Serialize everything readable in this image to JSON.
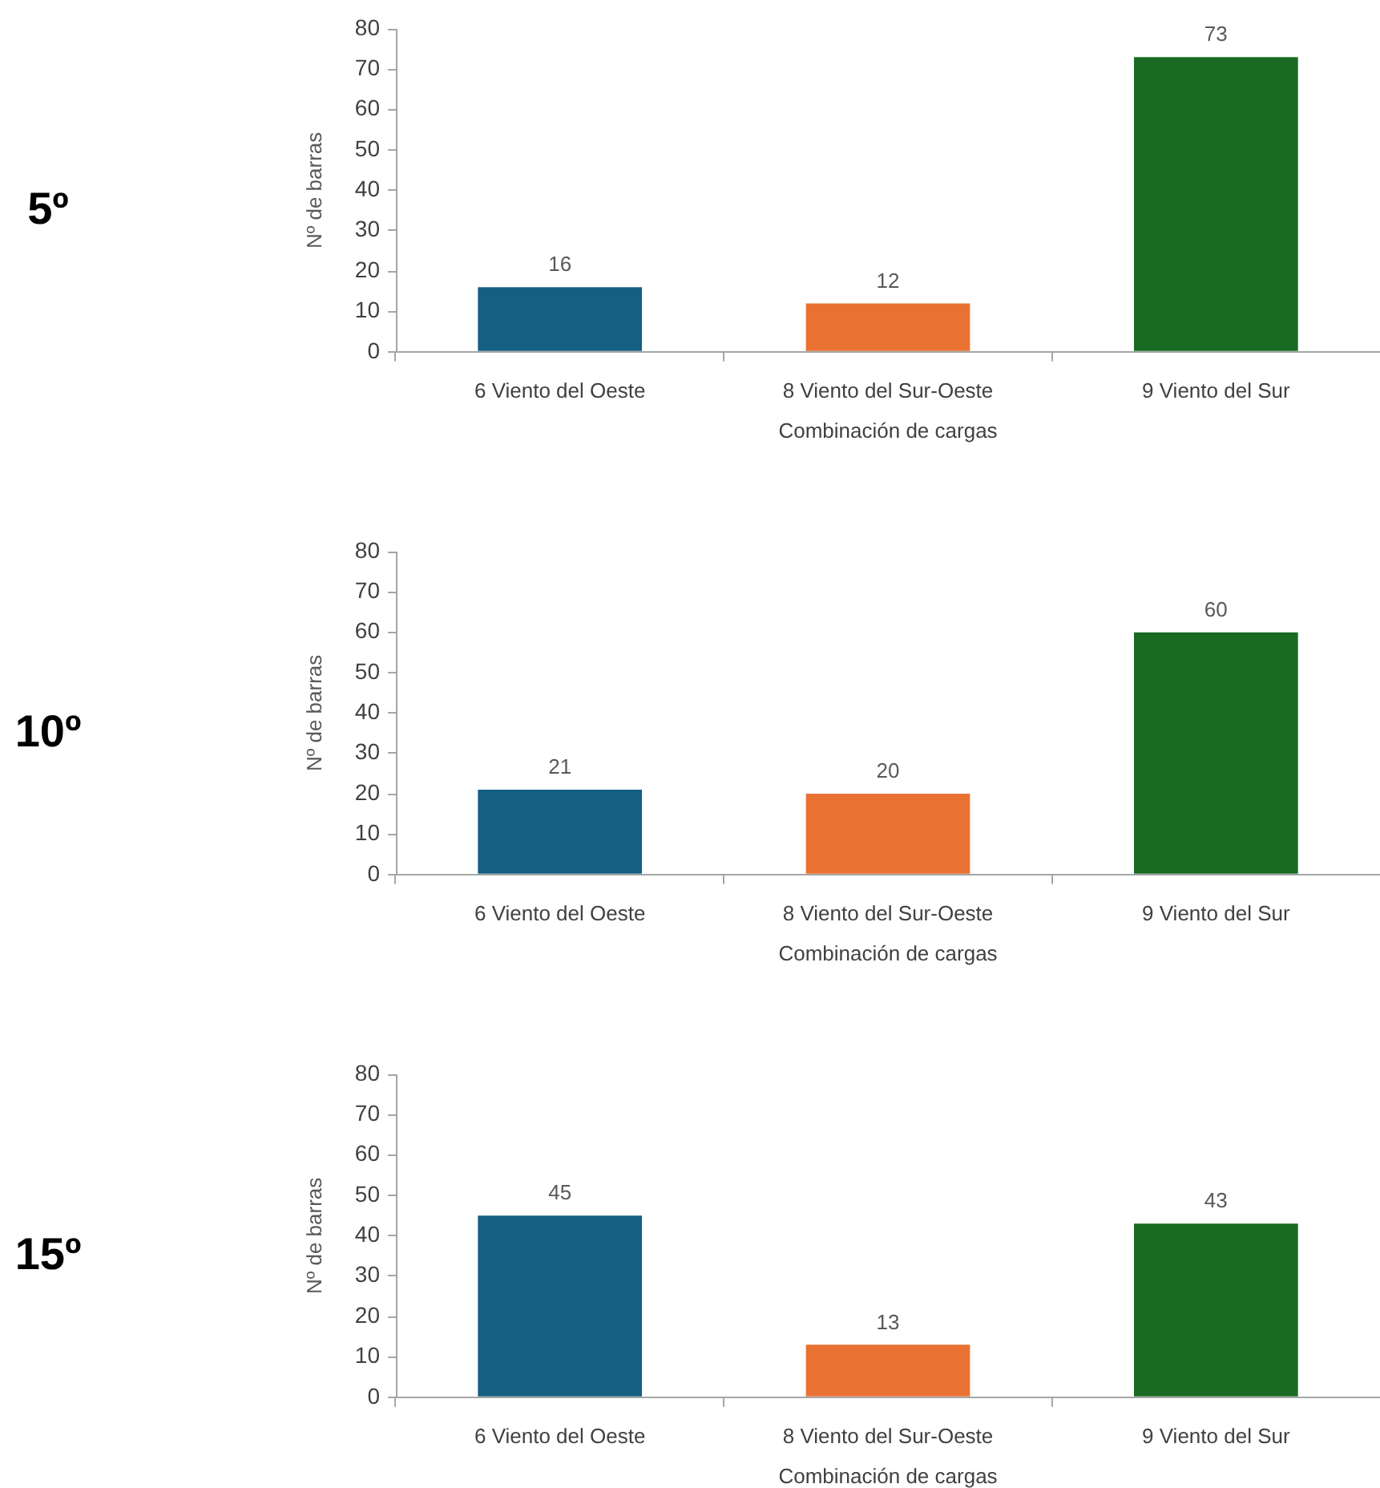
{
  "chart_data": [
    {
      "type": "bar",
      "annotations": [
        "5º"
      ],
      "categories": [
        "6 Viento del Oeste",
        "8 Viento del Sur-Oeste",
        "9 Viento del Sur"
      ],
      "values": [
        16,
        12,
        73
      ],
      "colors": [
        "#156082",
        "#e97132",
        "#196b24"
      ],
      "ylim": [
        0,
        80
      ],
      "yticks": [
        0,
        10,
        20,
        30,
        40,
        50,
        60,
        70,
        80
      ],
      "xlabel": "Combinación de cargas",
      "ylabel": "Nº de barras",
      "data_labels": true
    },
    {
      "type": "bar",
      "annotations": [
        "10º"
      ],
      "categories": [
        "6 Viento del Oeste",
        "8 Viento del Sur-Oeste",
        "9 Viento del Sur"
      ],
      "values": [
        21,
        20,
        60
      ],
      "colors": [
        "#156082",
        "#e97132",
        "#196b24"
      ],
      "ylim": [
        0,
        80
      ],
      "yticks": [
        0,
        10,
        20,
        30,
        40,
        50,
        60,
        70,
        80
      ],
      "xlabel": "Combinación de cargas",
      "ylabel": "Nº de barras",
      "data_labels": true
    },
    {
      "type": "bar",
      "annotations": [
        "15º"
      ],
      "categories": [
        "6 Viento del Oeste",
        "8 Viento del Sur-Oeste",
        "9 Viento del Sur"
      ],
      "values": [
        45,
        13,
        43
      ],
      "colors": [
        "#156082",
        "#e97132",
        "#196b24"
      ],
      "ylim": [
        0,
        80
      ],
      "yticks": [
        0,
        10,
        20,
        30,
        40,
        50,
        60,
        70,
        80
      ],
      "xlabel": "Combinación de cargas",
      "ylabel": "Nº de barras",
      "data_labels": true
    }
  ]
}
